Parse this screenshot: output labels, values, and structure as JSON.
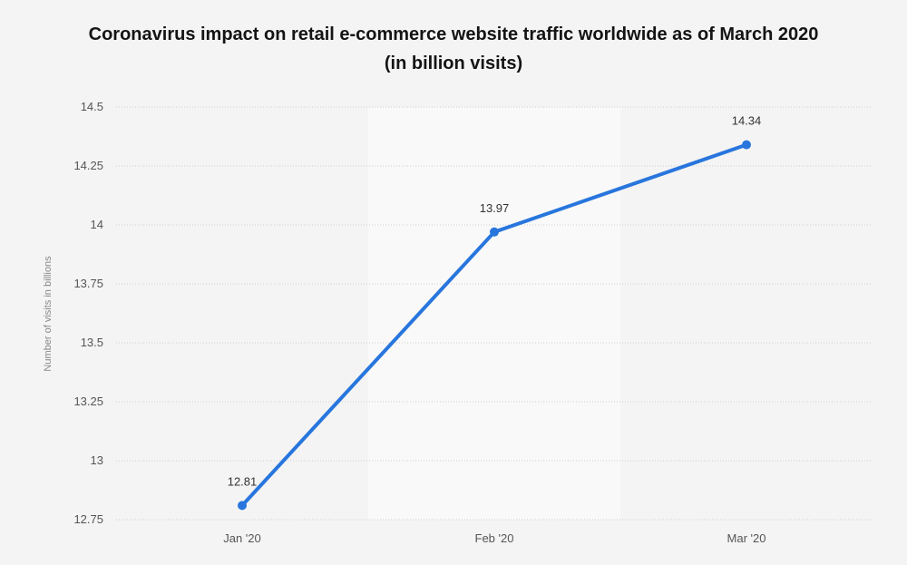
{
  "chart_data": {
    "type": "line",
    "title": "Coronavirus impact on retail e-commerce website traffic worldwide as of March 2020",
    "subtitle": "(in billion visits)",
    "xlabel": "",
    "ylabel": "Number of visits in billions",
    "categories": [
      "Jan '20",
      "Feb '20",
      "Mar '20"
    ],
    "series": [
      {
        "values": [
          12.81,
          13.97,
          14.34
        ],
        "color": "#2876dd"
      }
    ],
    "data_labels": [
      "12.81",
      "13.97",
      "14.34"
    ],
    "ylim": [
      12.75,
      14.5
    ],
    "yticks": [
      12.75,
      13,
      13.25,
      13.5,
      13.75,
      14,
      14.25,
      14.5
    ],
    "ytick_labels": [
      "12.75",
      "13",
      "13.25",
      "13.5",
      "13.75",
      "14",
      "14.25",
      "14.5"
    ],
    "grid": true,
    "legend": "none",
    "colors": {
      "background": "#f4f4f4",
      "band": "#f9f9f9",
      "gridline": "#cfcfcf",
      "line": "#2876dd"
    }
  }
}
